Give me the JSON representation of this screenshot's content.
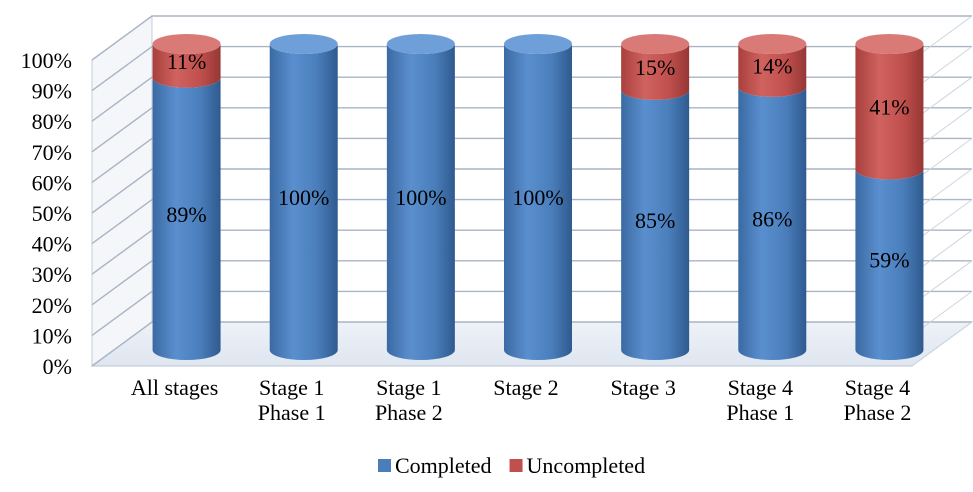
{
  "chart_data": {
    "type": "bar",
    "stacked": true,
    "style": "3d-cylinder",
    "title": "",
    "xlabel": "",
    "ylabel": "",
    "ylim": [
      0,
      100
    ],
    "y_ticks": [
      "0%",
      "10%",
      "20%",
      "30%",
      "40%",
      "50%",
      "60%",
      "70%",
      "80%",
      "90%",
      "100%"
    ],
    "grid": true,
    "legend_position": "bottom",
    "categories": [
      [
        "All stages"
      ],
      [
        "Stage 1",
        "Phase 1"
      ],
      [
        "Stage 1",
        "Phase 2"
      ],
      [
        "Stage 2"
      ],
      [
        "Stage 3"
      ],
      [
        "Stage 4",
        "Phase 1"
      ],
      [
        "Stage 4",
        "Phase 2"
      ]
    ],
    "series": [
      {
        "name": "Completed",
        "color": "#4a7ebb",
        "values": [
          89,
          100,
          100,
          100,
          85,
          86,
          59
        ],
        "labels": [
          "89%",
          "100%",
          "100%",
          "100%",
          "85%",
          "86%",
          "59%"
        ]
      },
      {
        "name": "Uncompleted",
        "color": "#c0504d",
        "values": [
          11,
          0,
          0,
          0,
          15,
          14,
          41
        ],
        "labels": [
          "11%",
          "",
          "",
          "",
          "15%",
          "14%",
          "41%"
        ]
      }
    ]
  }
}
